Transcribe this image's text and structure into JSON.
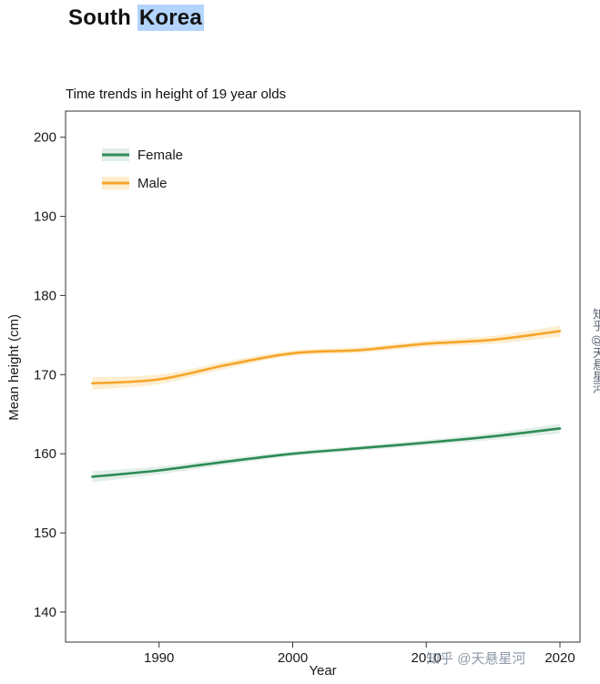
{
  "title": {
    "prefix": "South",
    "highlighted": "Korea"
  },
  "watermark": {
    "text": "知乎 @天悬星河"
  },
  "colors": {
    "selection_highlight": "#b3d4fc",
    "female_line": "#2e8b57",
    "female_band": "#cfe5d8",
    "male_line": "#f6a52a",
    "male_band": "#fce3b0",
    "axis": "#333333",
    "watermark_gray": "#8e99a9"
  },
  "chart_data": {
    "type": "line",
    "title": "Time trends in height of 19 year olds",
    "xlabel": "Year",
    "ylabel": "Mean height (cm)",
    "grid": false,
    "legend_position": "top-left",
    "x": [
      1985,
      1990,
      1995,
      2000,
      2005,
      2010,
      2015,
      2020
    ],
    "series": [
      {
        "name": "Female",
        "color": "#2e8b57",
        "band_color": "#cfe5d8",
        "values": [
          157.1,
          157.9,
          159.0,
          160.0,
          160.7,
          161.4,
          162.2,
          163.2
        ],
        "band_halfwidth": [
          0.7,
          0.5,
          0.4,
          0.3,
          0.3,
          0.35,
          0.45,
          0.6
        ]
      },
      {
        "name": "Male",
        "color": "#f6a52a",
        "band_color": "#fce3b0",
        "values": [
          168.9,
          169.4,
          171.2,
          172.7,
          173.1,
          173.9,
          174.4,
          175.5
        ],
        "band_halfwidth": [
          0.8,
          0.6,
          0.45,
          0.35,
          0.35,
          0.4,
          0.5,
          0.7
        ]
      }
    ],
    "x_ticks": [
      1990,
      2000,
      2010,
      2020
    ],
    "y_ticks": [
      140,
      150,
      160,
      170,
      180,
      190,
      200
    ],
    "xlim": [
      1983,
      2021.5
    ],
    "ylim": [
      136.2,
      203.3
    ]
  }
}
